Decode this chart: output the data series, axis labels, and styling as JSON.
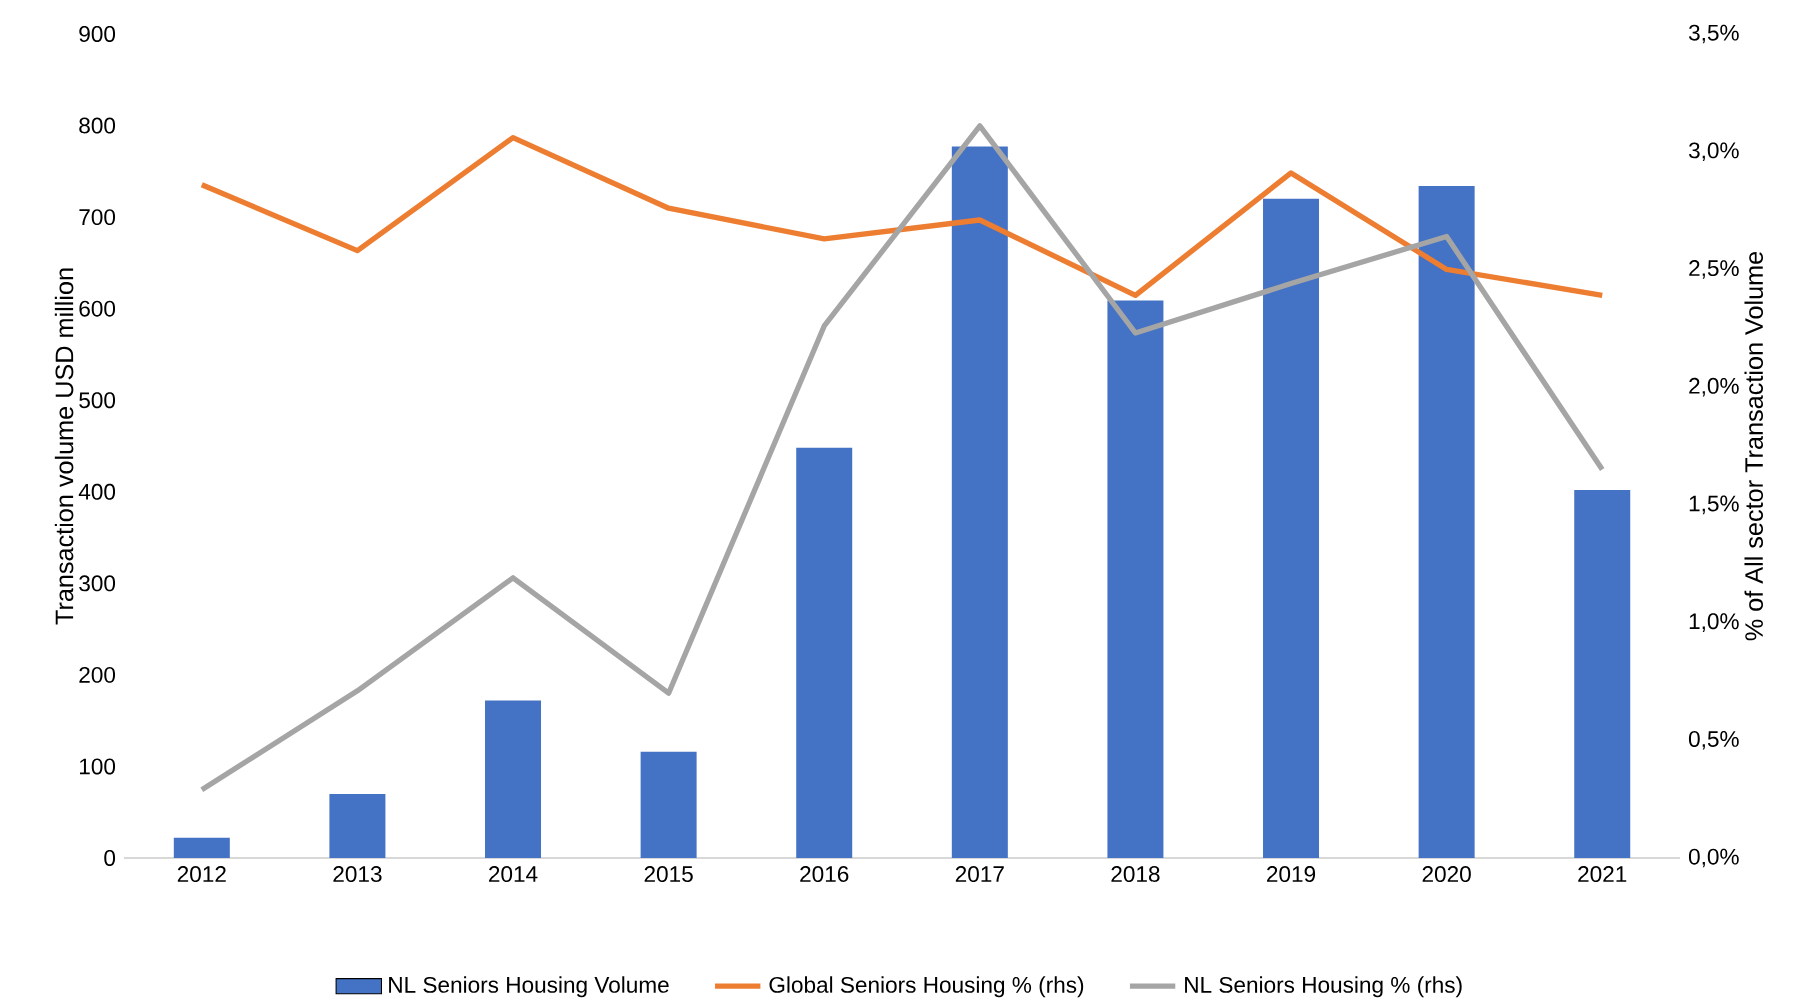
{
  "chart_data": {
    "type": "bar",
    "categories": [
      "2012",
      "2013",
      "2014",
      "2015",
      "2016",
      "2017",
      "2018",
      "2019",
      "2020",
      "2021"
    ],
    "ylabel": "Transaction volume USD million",
    "y2label": "% of All sector Transaction Volume",
    "ylim": [
      0,
      900
    ],
    "yticks": [
      0,
      100,
      200,
      300,
      400,
      500,
      600,
      700,
      800,
      900
    ],
    "y2lim": [
      0,
      3.5
    ],
    "y2ticks": [
      {
        "value": 0,
        "label": "0,0%"
      },
      {
        "value": 0.5,
        "label": "0,5%"
      },
      {
        "value": 1.0,
        "label": "1,0%"
      },
      {
        "value": 1.5,
        "label": "1,5%"
      },
      {
        "value": 2.0,
        "label": "2,0%"
      },
      {
        "value": 2.5,
        "label": "2,5%"
      },
      {
        "value": 3.0,
        "label": "3,0%"
      },
      {
        "value": 3.5,
        "label": "3,5%"
      }
    ],
    "legend": "bottom",
    "series": [
      {
        "name": "NL Seniors Housing Volume",
        "color": "#4472c4",
        "values": [
          22,
          70,
          172,
          116,
          448,
          777,
          609,
          720,
          734,
          402
        ]
      },
      {
        "name": "Global Seniors Housing % (rhs)",
        "type": "line",
        "axis": "y2",
        "color": "#ed7d31",
        "values": [
          2.86,
          2.58,
          3.06,
          2.76,
          2.63,
          2.71,
          2.39,
          2.91,
          2.5,
          2.39
        ]
      },
      {
        "name": "NL Seniors Housing % (rhs)",
        "type": "line",
        "axis": "y2",
        "color": "#a5a5a5",
        "values": [
          0.29,
          0.71,
          1.19,
          0.7,
          2.26,
          3.11,
          2.23,
          2.44,
          2.64,
          1.65
        ]
      }
    ]
  }
}
